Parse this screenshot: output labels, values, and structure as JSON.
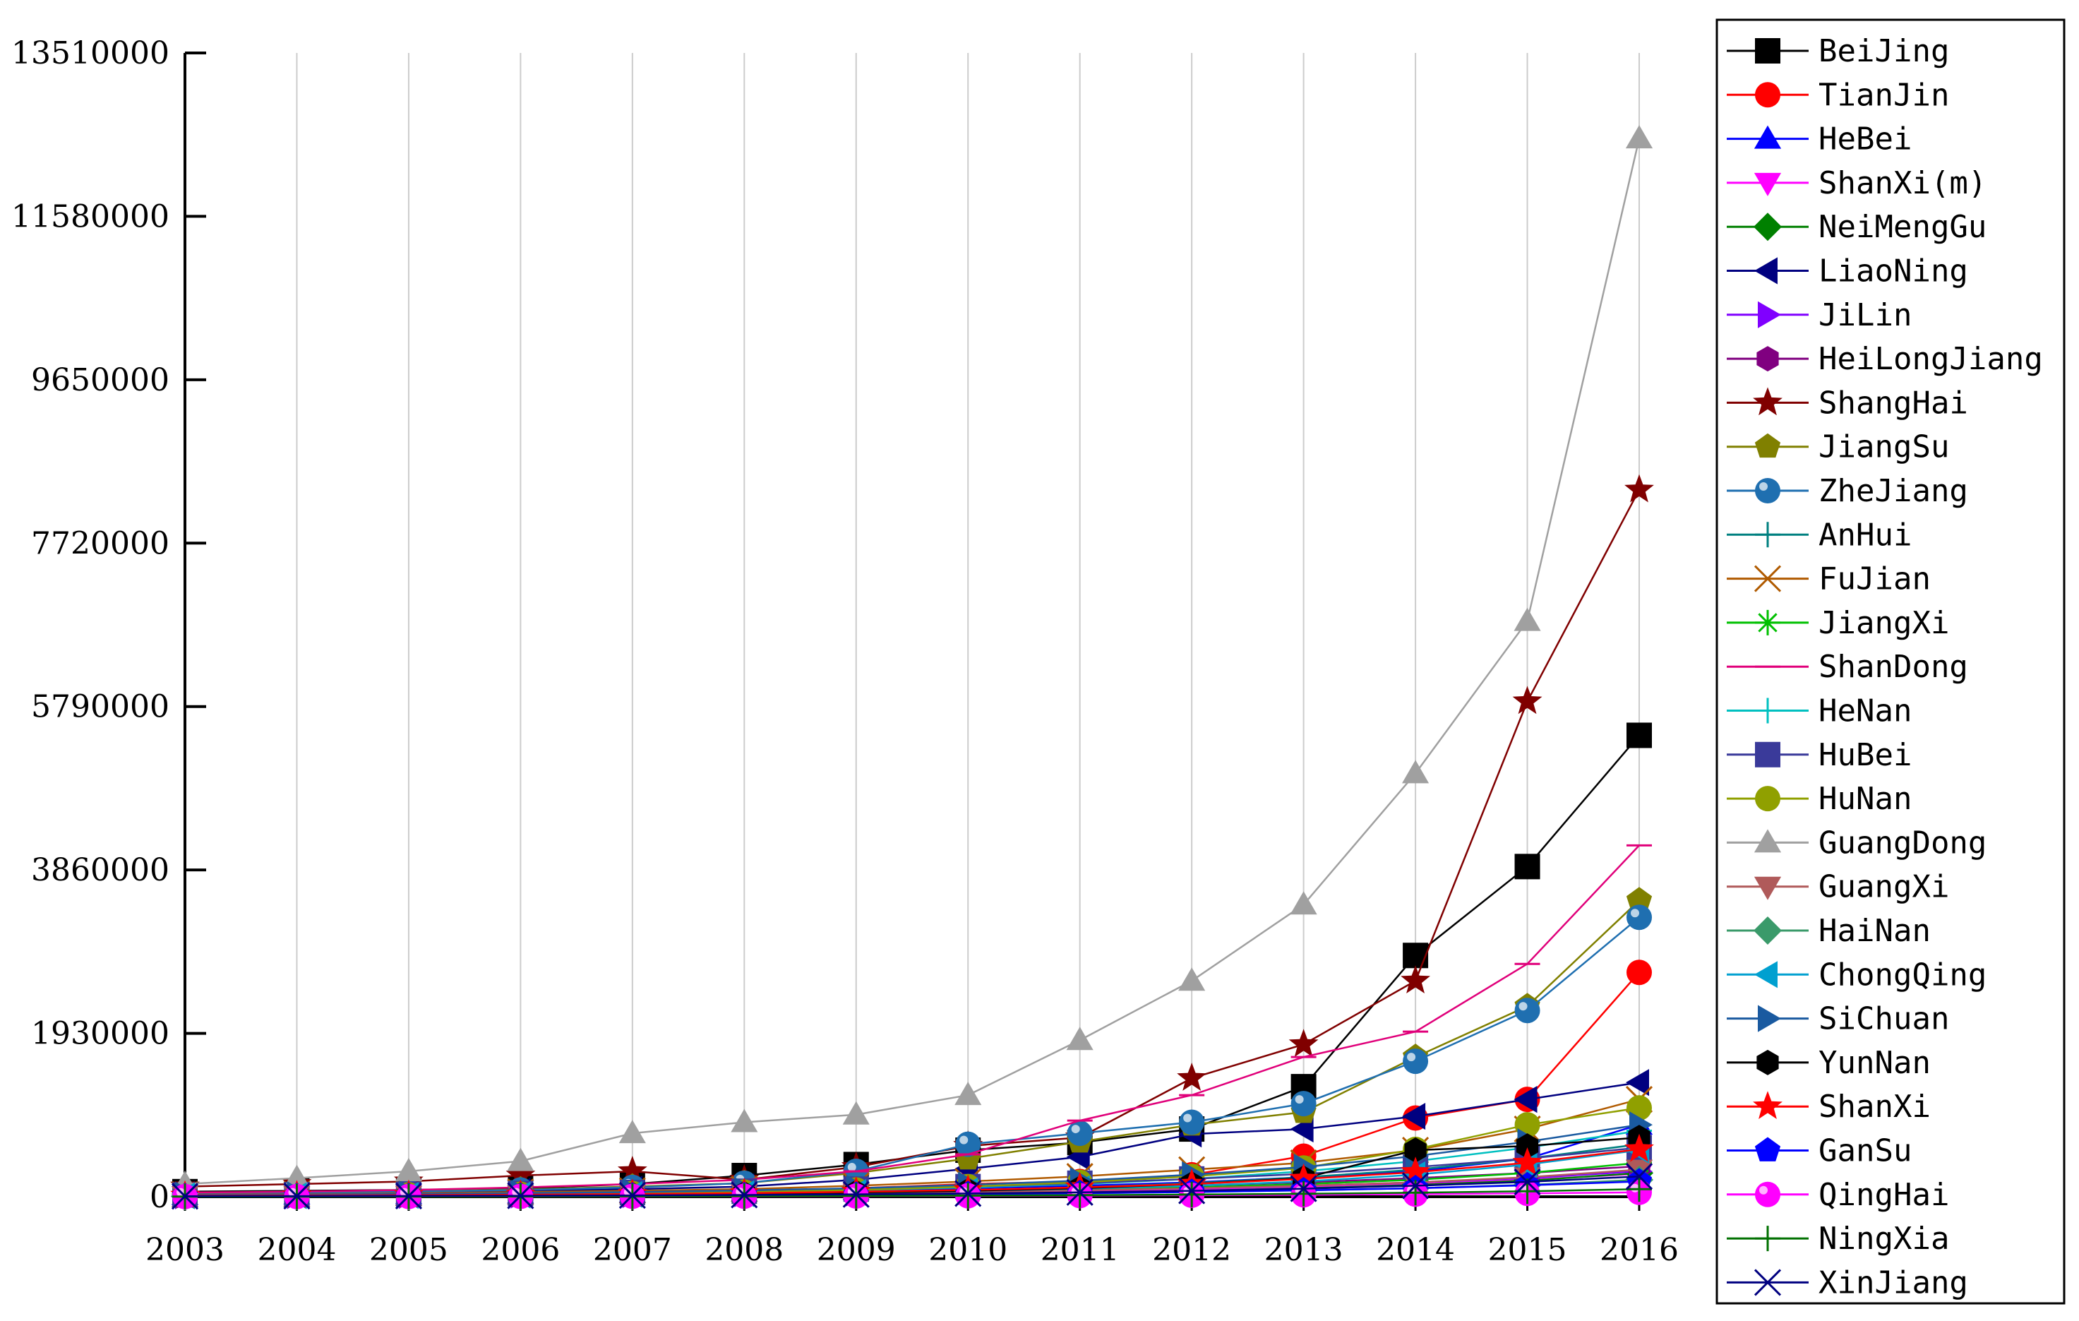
{
  "chart_data": {
    "type": "line",
    "title": "",
    "xlabel": "",
    "ylabel": "",
    "x": [
      "2003",
      "2004",
      "2005",
      "2006",
      "2007",
      "2008",
      "2009",
      "2010",
      "2011",
      "2012",
      "2013",
      "2014",
      "2015",
      "2016"
    ],
    "ylim": [
      0,
      13510000
    ],
    "yticks": [
      0,
      1930000,
      3860000,
      5790000,
      7720000,
      9650000,
      11580000,
      13510000
    ],
    "ytick_labels": [
      "0",
      "1930000",
      "3860000",
      "5790000",
      "7720000",
      "9650000",
      "11580000",
      "13510000"
    ],
    "grid": "vertical",
    "legend_position": "right",
    "series": [
      {
        "name": "BeiJing",
        "color": "#000000",
        "marker": "square",
        "values": [
          60000,
          70000,
          80000,
          100000,
          150000,
          250000,
          380000,
          550000,
          640000,
          800000,
          1300000,
          2850000,
          3900000,
          5450000
        ]
      },
      {
        "name": "TianJin",
        "color": "#ff0000",
        "marker": "circle",
        "values": [
          15000,
          18000,
          22000,
          28000,
          40000,
          60000,
          100000,
          150000,
          180000,
          260000,
          480000,
          930000,
          1150000,
          2650000
        ]
      },
      {
        "name": "HeBei",
        "color": "#0000ff",
        "marker": "triangle-up",
        "values": [
          20000,
          25000,
          30000,
          38000,
          48000,
          60000,
          80000,
          100000,
          130000,
          170000,
          230000,
          300000,
          450000,
          850000
        ]
      },
      {
        "name": "ShanXi(m)",
        "color": "#ff00ff",
        "marker": "triangle-down",
        "values": [
          8000,
          10000,
          12000,
          15000,
          20000,
          25000,
          35000,
          45000,
          60000,
          80000,
          110000,
          150000,
          200000,
          270000
        ]
      },
      {
        "name": "NeiMengGu",
        "color": "#008000",
        "marker": "diamond",
        "values": [
          5000,
          6000,
          8000,
          10000,
          14000,
          20000,
          30000,
          40000,
          50000,
          70000,
          100000,
          140000,
          190000,
          280000
        ]
      },
      {
        "name": "LiaoNing",
        "color": "#000080",
        "marker": "triangle-left",
        "values": [
          30000,
          40000,
          50000,
          65000,
          90000,
          120000,
          200000,
          330000,
          470000,
          740000,
          800000,
          950000,
          1150000,
          1350000
        ]
      },
      {
        "name": "JiLin",
        "color": "#8000ff",
        "marker": "triangle-right",
        "values": [
          10000,
          12000,
          15000,
          20000,
          25000,
          35000,
          45000,
          60000,
          80000,
          100000,
          130000,
          170000,
          220000,
          300000
        ]
      },
      {
        "name": "HeiLongJiang",
        "color": "#800080",
        "marker": "hexagon",
        "values": [
          15000,
          18000,
          22000,
          28000,
          35000,
          45000,
          60000,
          80000,
          100000,
          130000,
          170000,
          220000,
          280000,
          360000
        ]
      },
      {
        "name": "ShangHai",
        "color": "#800000",
        "marker": "star",
        "values": [
          120000,
          150000,
          180000,
          250000,
          300000,
          200000,
          350000,
          600000,
          700000,
          1400000,
          1800000,
          2550000,
          5850000,
          8350000
        ]
      },
      {
        "name": "JiangSu",
        "color": "#808000",
        "marker": "pentagon",
        "values": [
          40000,
          50000,
          65000,
          85000,
          120000,
          160000,
          280000,
          450000,
          650000,
          850000,
          1000000,
          1650000,
          2250000,
          3500000
        ]
      },
      {
        "name": "ZheJiang",
        "color": "#1f6fb0",
        "marker": "sphere",
        "values": [
          35000,
          45000,
          60000,
          80000,
          110000,
          160000,
          300000,
          620000,
          750000,
          880000,
          1100000,
          1600000,
          2200000,
          3300000
        ]
      },
      {
        "name": "AnHui",
        "color": "#008080",
        "marker": "plus",
        "values": [
          10000,
          12000,
          15000,
          20000,
          28000,
          40000,
          60000,
          80000,
          110000,
          160000,
          230000,
          320000,
          450000,
          620000
        ]
      },
      {
        "name": "FuJian",
        "color": "#b05a00",
        "marker": "x",
        "values": [
          25000,
          30000,
          40000,
          55000,
          70000,
          90000,
          130000,
          180000,
          240000,
          320000,
          400000,
          550000,
          800000,
          1150000
        ]
      },
      {
        "name": "JiangXi",
        "color": "#00c000",
        "marker": "asterisk",
        "values": [
          8000,
          10000,
          13000,
          17000,
          22000,
          30000,
          45000,
          60000,
          80000,
          110000,
          150000,
          200000,
          280000,
          400000
        ]
      },
      {
        "name": "ShanDong",
        "color": "#e0007a",
        "marker": "dash",
        "values": [
          50000,
          60000,
          80000,
          110000,
          150000,
          200000,
          300000,
          500000,
          900000,
          1200000,
          1650000,
          1950000,
          2750000,
          4150000
        ]
      },
      {
        "name": "HeNan",
        "color": "#00c0c0",
        "marker": "plus",
        "values": [
          15000,
          18000,
          23000,
          30000,
          40000,
          55000,
          80000,
          110000,
          150000,
          210000,
          300000,
          420000,
          580000,
          780000
        ]
      },
      {
        "name": "HuBei",
        "color": "#3a3a9a",
        "marker": "square",
        "values": [
          20000,
          25000,
          30000,
          38000,
          50000,
          65000,
          90000,
          120000,
          160000,
          210000,
          270000,
          350000,
          450000,
          580000
        ]
      },
      {
        "name": "HuNan",
        "color": "#90a000",
        "marker": "circle",
        "values": [
          15000,
          18000,
          23000,
          30000,
          40000,
          55000,
          80000,
          120000,
          170000,
          240000,
          340000,
          560000,
          850000,
          1050000
        ]
      },
      {
        "name": "GuangDong",
        "color": "#a0a0a0",
        "marker": "triangle-up",
        "values": [
          150000,
          220000,
          300000,
          420000,
          750000,
          880000,
          970000,
          1200000,
          1850000,
          2550000,
          3450000,
          5000000,
          6800000,
          12500000
        ]
      },
      {
        "name": "GuangXi",
        "color": "#b05a5a",
        "marker": "triangle-down",
        "values": [
          8000,
          10000,
          13000,
          17000,
          23000,
          30000,
          40000,
          55000,
          75000,
          100000,
          130000,
          170000,
          230000,
          320000
        ]
      },
      {
        "name": "HaiNan",
        "color": "#3a9a6a",
        "marker": "diamond",
        "values": [
          5000,
          6000,
          7000,
          9000,
          12000,
          16000,
          22000,
          30000,
          40000,
          55000,
          75000,
          100000,
          140000,
          200000
        ]
      },
      {
        "name": "ChongQing",
        "color": "#00a0d0",
        "marker": "triangle-left",
        "values": [
          10000,
          12000,
          15000,
          20000,
          27000,
          36000,
          50000,
          70000,
          95000,
          130000,
          180000,
          260000,
          380000,
          550000
        ]
      },
      {
        "name": "SiChuan",
        "color": "#1a5aa0",
        "marker": "triangle-right",
        "values": [
          20000,
          25000,
          32000,
          42000,
          55000,
          75000,
          100000,
          140000,
          190000,
          260000,
          350000,
          480000,
          650000,
          850000
        ]
      },
      {
        "name": "YunNan",
        "color": "#000000",
        "marker": "hexagon",
        "values": [
          10000,
          12000,
          15000,
          20000,
          25000,
          35000,
          50000,
          70000,
          100000,
          150000,
          220000,
          550000,
          600000,
          700000
        ]
      },
      {
        "name": "ShanXi",
        "color": "#ff0000",
        "marker": "star",
        "values": [
          12000,
          15000,
          18000,
          24000,
          32000,
          42000,
          58000,
          80000,
          110000,
          150000,
          210000,
          290000,
          400000,
          560000
        ]
      },
      {
        "name": "GanSu",
        "color": "#0000ff",
        "marker": "pentagon",
        "values": [
          5000,
          6000,
          8000,
          10000,
          13000,
          17000,
          23000,
          31000,
          42000,
          56000,
          75000,
          100000,
          135000,
          180000
        ]
      },
      {
        "name": "QingHai",
        "color": "#ff00ff",
        "marker": "sphere",
        "values": [
          2000,
          2500,
          3000,
          4000,
          5000,
          6500,
          8500,
          11000,
          14000,
          18000,
          23000,
          30000,
          40000,
          52000
        ]
      },
      {
        "name": "NingXia",
        "color": "#007000",
        "marker": "plus",
        "values": [
          2000,
          2500,
          3000,
          4000,
          5500,
          7500,
          10000,
          14000,
          19000,
          26000,
          35000,
          48000,
          65000,
          90000
        ]
      },
      {
        "name": "XinJiang",
        "color": "#000080",
        "marker": "x",
        "values": [
          6000,
          7500,
          9000,
          12000,
          16000,
          21000,
          28000,
          38000,
          52000,
          70000,
          95000,
          130000,
          175000,
          240000
        ]
      }
    ]
  }
}
